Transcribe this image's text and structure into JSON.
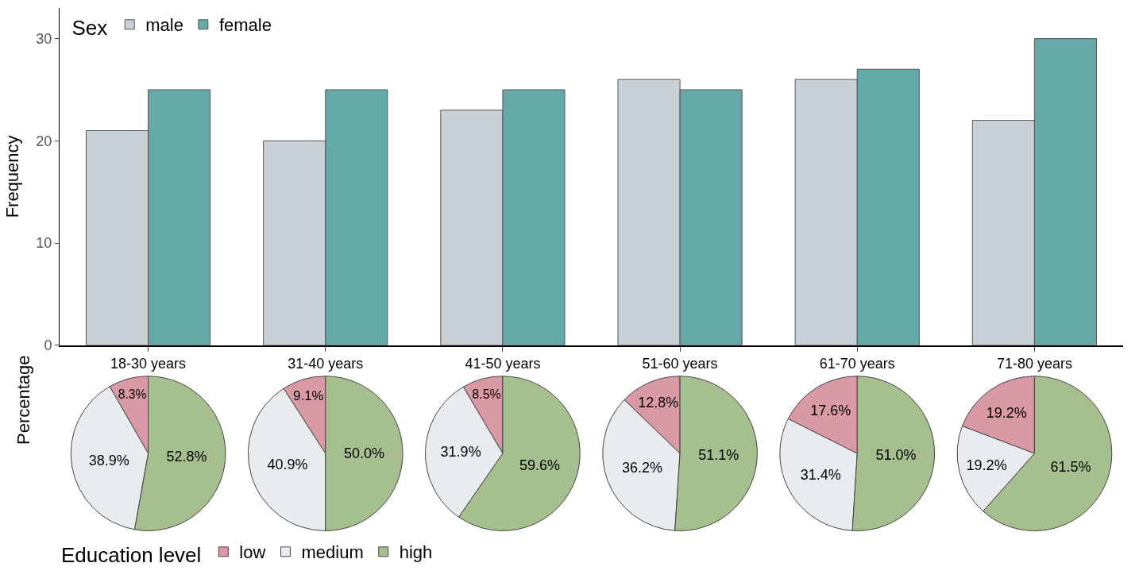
{
  "chart_data": [
    {
      "type": "bar",
      "ylabel": "Frequency",
      "categories": [
        "18-30 years",
        "31-40 years",
        "41-50 years",
        "51-60 years",
        "61-70 years",
        "71-80 years"
      ],
      "legend_title": "Sex",
      "legend": "top left",
      "ylim": [
        0,
        33
      ],
      "yticks": [
        0,
        10,
        20,
        30
      ],
      "series": [
        {
          "name": "male",
          "color": "#c9d0d6",
          "values": [
            21,
            20,
            23,
            26,
            26,
            22
          ]
        },
        {
          "name": "female",
          "color": "#65aaa8",
          "values": [
            25,
            25,
            25,
            25,
            27,
            30
          ]
        }
      ]
    },
    {
      "type": "pie",
      "ylabel": "Percentage",
      "legend_title": "Education level",
      "legend": "bottom",
      "categories": [
        "low",
        "medium",
        "high"
      ],
      "colors": [
        "#d99aa6",
        "#e9ecef",
        "#a6bf8e"
      ],
      "values": [
        8.3,
        38.9,
        52.8
      ],
      "value_labels": [
        "8.3%",
        "38.9%",
        "52.8%"
      ]
    },
    {
      "type": "pie",
      "colors": [
        "#d99aa6",
        "#e9ecef",
        "#a6bf8e"
      ],
      "values": [
        9.1,
        40.9,
        50.0
      ],
      "value_labels": [
        "9.1%",
        "40.9%",
        "50.0%"
      ]
    },
    {
      "type": "pie",
      "colors": [
        "#d99aa6",
        "#e9ecef",
        "#a6bf8e"
      ],
      "values": [
        8.5,
        31.9,
        59.6
      ],
      "value_labels": [
        "8.5%",
        "31.9%",
        "59.6%"
      ]
    },
    {
      "type": "pie",
      "colors": [
        "#d99aa6",
        "#e9ecef",
        "#a6bf8e"
      ],
      "values": [
        12.8,
        36.2,
        51.1
      ],
      "value_labels": [
        "12.8%",
        "36.2%",
        "51.1%"
      ]
    },
    {
      "type": "pie",
      "colors": [
        "#d99aa6",
        "#e9ecef",
        "#a6bf8e"
      ],
      "values": [
        17.6,
        31.4,
        51.0
      ],
      "value_labels": [
        "17.6%",
        "31.4%",
        "51.0%"
      ]
    },
    {
      "type": "pie",
      "colors": [
        "#d99aa6",
        "#e9ecef",
        "#a6bf8e"
      ],
      "values": [
        19.2,
        19.2,
        61.5
      ],
      "value_labels": [
        "19.2%",
        "19.2%",
        "61.5%"
      ]
    }
  ]
}
